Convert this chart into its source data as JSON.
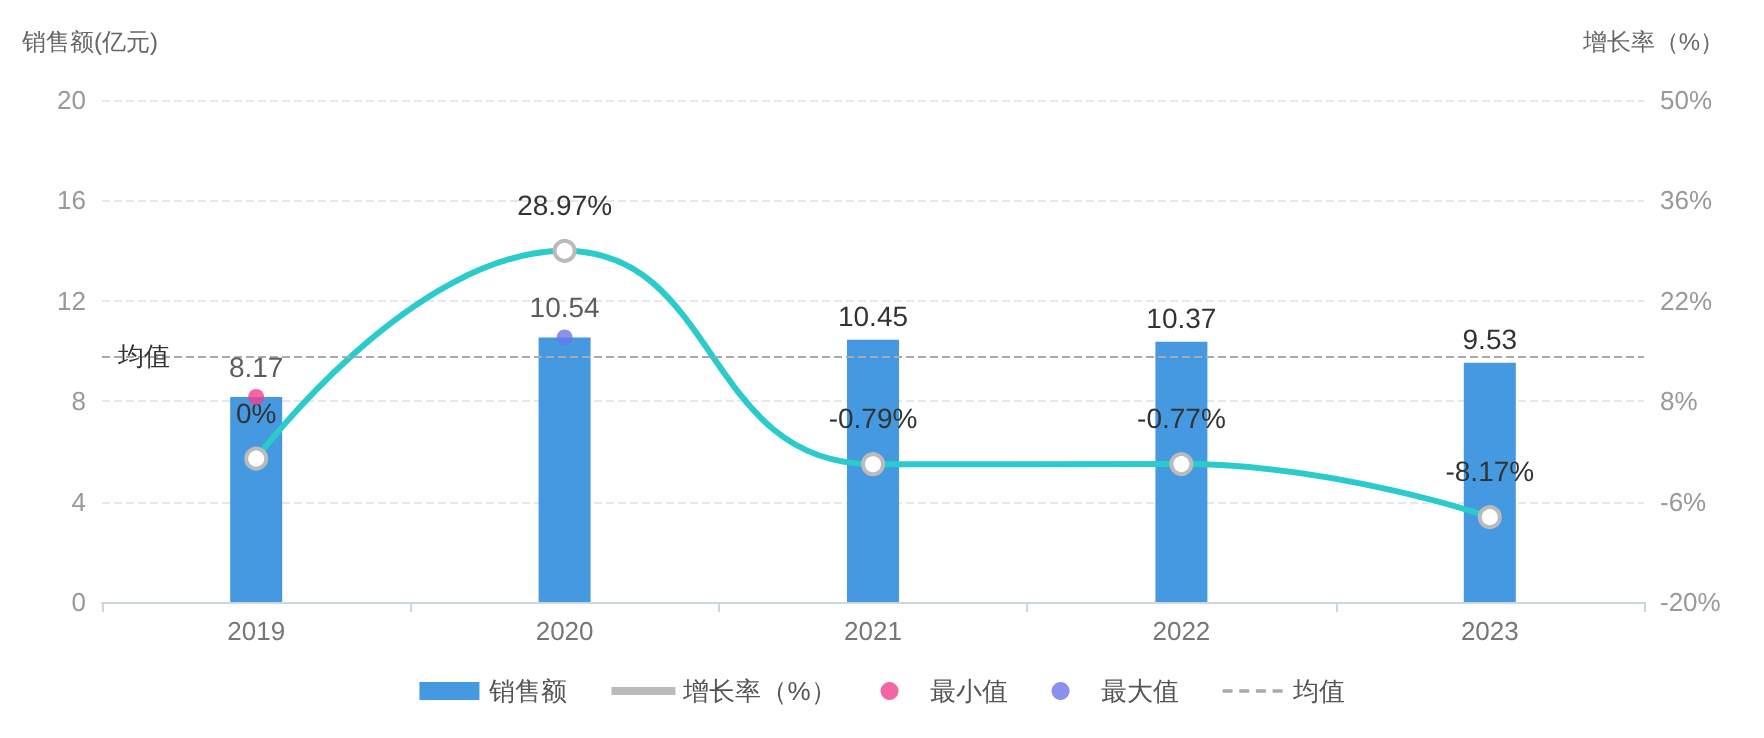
{
  "chart_data": {
    "type": "bar",
    "categories": [
      "2019",
      "2020",
      "2021",
      "2022",
      "2023"
    ],
    "ylabel": "销售额(亿元)",
    "y2label": "增长率（%）",
    "ylim": [
      0,
      20
    ],
    "yticks": [
      0,
      4,
      8,
      12,
      16,
      20
    ],
    "y2lim": [
      -20,
      50
    ],
    "y2ticks": [
      {
        "value": -20,
        "label": "-20%"
      },
      {
        "value": -6,
        "label": "-6%"
      },
      {
        "value": 8,
        "label": "8%"
      },
      {
        "value": 22,
        "label": "22%"
      },
      {
        "value": 36,
        "label": "36%"
      },
      {
        "value": 50,
        "label": "50%"
      }
    ],
    "series": [
      {
        "name": "销售额",
        "color": "#4499e0",
        "values": [
          8.17,
          10.54,
          10.45,
          10.37,
          9.53
        ],
        "value_labels": [
          null,
          null,
          "10.45",
          "10.37",
          "9.53"
        ]
      },
      {
        "name": "增长率（%）",
        "type": "line",
        "axis": "y2",
        "color": "#2ccbcb",
        "marker": "circle",
        "values": [
          0,
          28.97,
          -0.79,
          -0.77,
          -8.17
        ],
        "value_labels": [
          "0%",
          "28.97%",
          "-0.79%",
          "-0.77%",
          "-8.17%"
        ]
      },
      {
        "name": "最小值",
        "type": "scatter",
        "color": "#f23d8c",
        "values": [
          8.17,
          null,
          null,
          null,
          null
        ],
        "value_labels": [
          "8.17",
          null,
          null,
          null,
          null
        ]
      },
      {
        "name": "最大值",
        "type": "scatter",
        "color": "#6a77e8",
        "values": [
          null,
          10.54,
          null,
          null,
          null
        ],
        "value_labels": [
          null,
          "10.54",
          null,
          null,
          null
        ]
      }
    ],
    "ref_lines": [
      {
        "axis": "y",
        "value": 9.812,
        "label": "均值",
        "color": "#aaaaaa",
        "line_style": "dashed"
      }
    ],
    "grid": "y",
    "legend": "bottom"
  }
}
